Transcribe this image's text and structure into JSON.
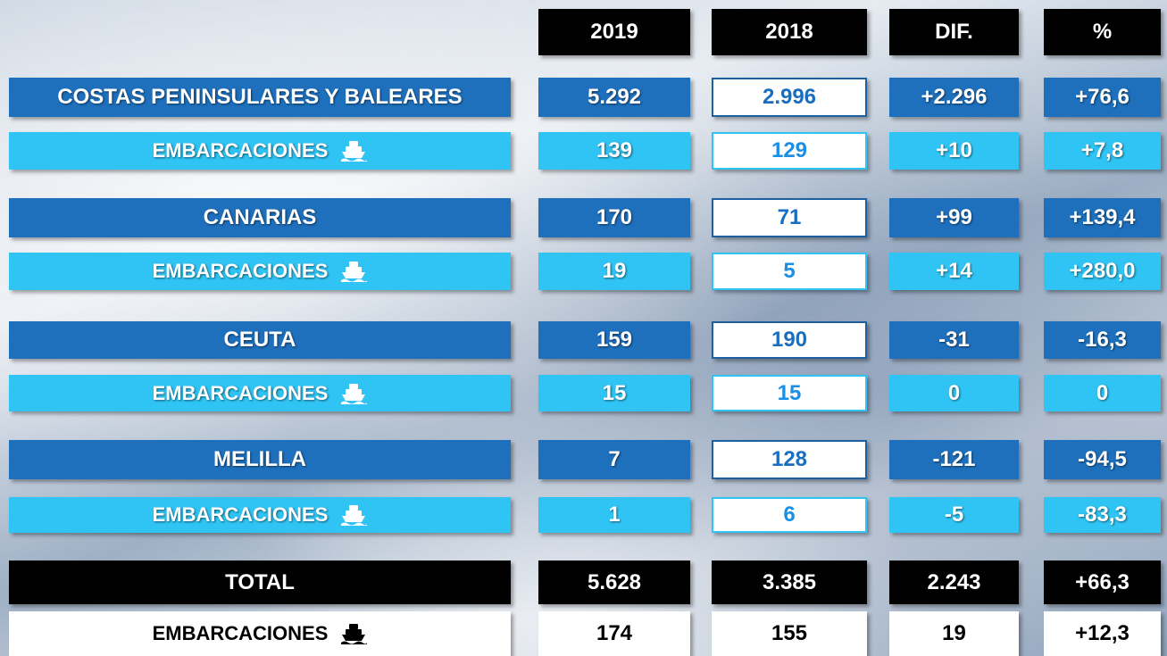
{
  "table": {
    "header": [
      "2019",
      "2018",
      "DIF.",
      "%"
    ],
    "rows": [
      {
        "label": "COSTAS PENINSULARES Y BALEARES",
        "values": [
          "5.292",
          "2.996",
          "+2.296",
          "+76,6"
        ]
      },
      {
        "label": "EMBARCACIONES",
        "values": [
          "139",
          "129",
          "+10",
          "+7,8"
        ]
      },
      {
        "label": "CANARIAS",
        "values": [
          "170",
          "71",
          "+99",
          "+139,4"
        ]
      },
      {
        "label": "EMBARCACIONES",
        "values": [
          "19",
          "5",
          "+14",
          "+280,0"
        ]
      },
      {
        "label": "CEUTA",
        "values": [
          "159",
          "190",
          "-31",
          "-16,3"
        ]
      },
      {
        "label": "EMBARCACIONES",
        "values": [
          "15",
          "15",
          "0",
          "0"
        ]
      },
      {
        "label": "MELILLA",
        "values": [
          "7",
          "128",
          "-121",
          "-94,5"
        ]
      },
      {
        "label": "EMBARCACIONES",
        "values": [
          "1",
          "6",
          "-5",
          "-83,3"
        ]
      },
      {
        "label": "TOTAL",
        "values": [
          "5.628",
          "3.385",
          "2.243",
          "+66,3"
        ]
      },
      {
        "label": "EMBARCACIONES",
        "values": [
          "174",
          "155",
          "19",
          "+12,3"
        ]
      }
    ]
  }
}
